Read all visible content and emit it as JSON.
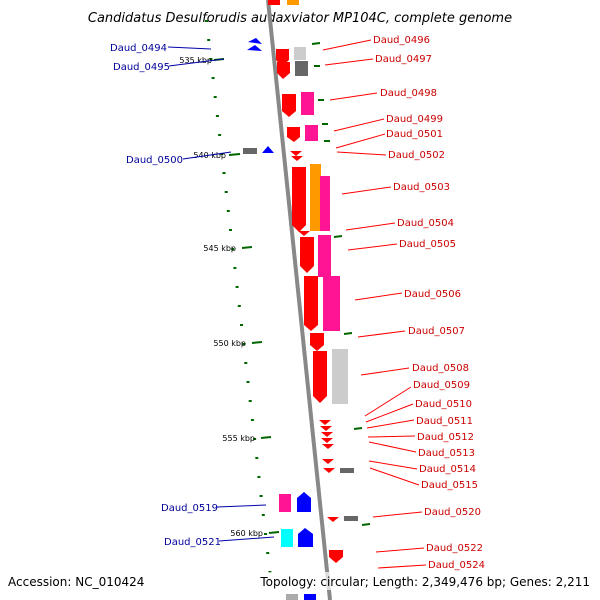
{
  "title": "Candidatus Desulforudis audaxviator MP104C, complete genome",
  "footer": {
    "accession": "Accession: NC_010424",
    "summary": "Topology: circular; Length: 2,349,476 bp; Genes: 2,211"
  },
  "kbp_labels": [
    "535 kbp",
    "540 kbp",
    "545 kbp",
    "550 kbp",
    "555 kbp",
    "560 kbp"
  ],
  "genes_right": [
    "Daud_0496",
    "Daud_0497",
    "Daud_0498",
    "Daud_0499",
    "Daud_0501",
    "Daud_0502",
    "Daud_0503",
    "Daud_0504",
    "Daud_0505",
    "Daud_0506",
    "Daud_0507",
    "Daud_0508",
    "Daud_0509",
    "Daud_0510",
    "Daud_0511",
    "Daud_0512",
    "Daud_0513",
    "Daud_0514",
    "Daud_0515",
    "Daud_0520",
    "Daud_0522",
    "Daud_0524"
  ],
  "genes_left": [
    "Daud_0494",
    "Daud_0495",
    "Daud_0500",
    "Daud_0519",
    "Daud_0521"
  ],
  "colors": {
    "red": "#ff0000",
    "magenta": "#ff1493",
    "orange": "#ff9900",
    "blue": "#0000ff",
    "cyan": "#00ffff",
    "gray": "#aaaaaa",
    "dark_gray": "#666666",
    "backbone": "#888888",
    "tick": "#006600",
    "label_red": "#cc0000",
    "label_blue": "#000099"
  }
}
